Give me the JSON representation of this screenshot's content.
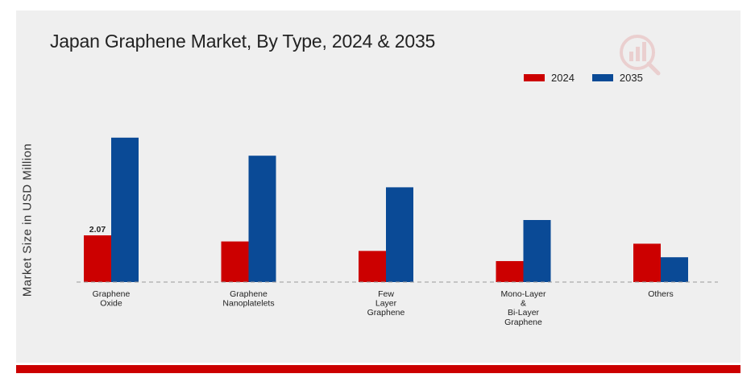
{
  "title": "Japan Graphene Market, By Type, 2024 & 2035",
  "colors": {
    "series_2024": "#cc0000",
    "series_2035": "#0a4a96",
    "accent_bar": "#cc0000",
    "background": "#efefef"
  },
  "watermark_icon": "market-research-logo-icon",
  "chart_data": {
    "type": "bar",
    "title": "Japan Graphene Market, By Type, 2024 & 2035",
    "xlabel": "",
    "ylabel": "Market Size in USD Million",
    "categories": [
      [
        "Graphene",
        "Oxide"
      ],
      [
        "Graphene",
        "Nanoplatelets"
      ],
      [
        "Few",
        "Layer",
        "Graphene"
      ],
      [
        "Mono-Layer",
        "&",
        "Bi-Layer",
        "Graphene"
      ],
      [
        "Others"
      ]
    ],
    "series": [
      {
        "name": "2024",
        "values": [
          2.07,
          1.8,
          1.38,
          0.93,
          1.7
        ]
      },
      {
        "name": "2035",
        "values": [
          6.4,
          5.6,
          4.2,
          2.75,
          1.1
        ]
      }
    ],
    "ylim": [
      0,
      7.5
    ],
    "data_labels": [
      {
        "series": 0,
        "index": 0,
        "text": "2.07"
      }
    ],
    "legend": {
      "position": "top-right",
      "entries": [
        "2024",
        "2035"
      ]
    },
    "grid": false,
    "baseline_style": "dashed"
  }
}
